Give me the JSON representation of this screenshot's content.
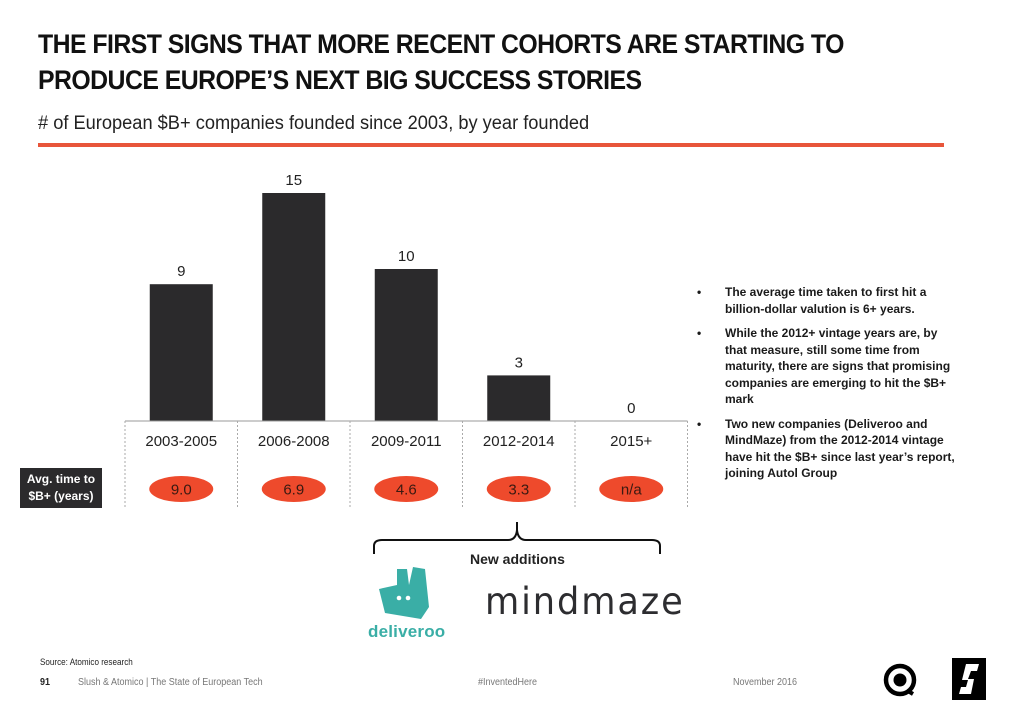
{
  "header": {
    "title_line1": "THE FIRST SIGNS THAT MORE RECENT COHORTS ARE STARTING TO",
    "title_line2": "PRODUCE EUROPE’S NEXT BIG SUCCESS STORIES",
    "subtitle": "# of European $B+ companies founded since 2003, by year founded",
    "accent_color": "#e8553a"
  },
  "chart_data": {
    "type": "bar",
    "title": "# of European $B+ companies founded since 2003, by year founded",
    "xlabel": "",
    "ylabel": "",
    "categories": [
      "2003-2005",
      "2006-2008",
      "2009-2011",
      "2012-2014",
      "2015+"
    ],
    "values": [
      9,
      15,
      10,
      3,
      0
    ],
    "value_labels": [
      "9",
      "15",
      "10",
      "3",
      "0"
    ],
    "ylim": [
      0,
      15
    ],
    "grid": false,
    "bar_color": "#2b2a2c",
    "secondary_row": {
      "label_line1": "Avg. time to",
      "label_line2": "$B+ (years)",
      "values": [
        "9.0",
        "6.9",
        "4.6",
        "3.3",
        "n/a"
      ],
      "pill_color": "#ee4a2c"
    }
  },
  "bullets": [
    {
      "marker": "•",
      "text": "The average time taken to first hit a billion-dollar valution is 6+ years."
    },
    {
      "marker": "•",
      "text": "While the 2012+ vintage years are, by that measure, still some time from maturity, there are signs that promising companies are emerging to hit the $B+ mark"
    },
    {
      "marker": "•",
      "text": "Two new companies (Deliveroo and MindMaze) from the 2012-2014 vintage have hit the $B+ since last year’s report, joining Autol Group"
    }
  ],
  "additions": {
    "label": "New additions",
    "companies": [
      {
        "name": "deliveroo",
        "icon": "deliveroo-kangaroo-icon",
        "color": "#3aaea6"
      },
      {
        "name": "mindmaze",
        "color": "#2d2d30"
      }
    ]
  },
  "footer": {
    "source": "Source: Atomico research",
    "page_number": "91",
    "publication": "Slush & Atomico  |  The State of European Tech",
    "hashtag": "#InventedHere",
    "date": "November 2016",
    "logos": [
      "atomico-logo-icon",
      "slush-logo-icon"
    ]
  }
}
